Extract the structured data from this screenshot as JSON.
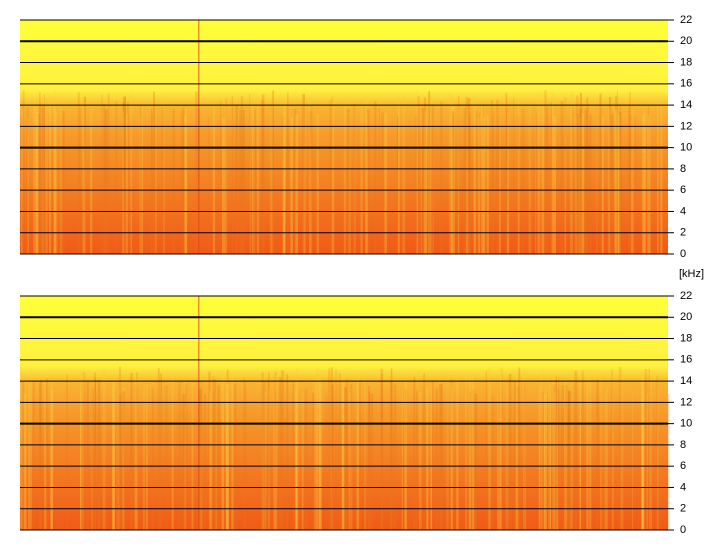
{
  "chart_data": [
    {
      "type": "spectrogram",
      "ylim": [
        0,
        22
      ],
      "yticks": [
        0,
        2,
        4,
        6,
        8,
        10,
        12,
        14,
        16,
        18,
        20,
        22
      ],
      "grid": true
    },
    {
      "type": "spectrogram",
      "y_label": "[kHz]",
      "ylim": [
        0,
        22
      ],
      "yticks": [
        0,
        2,
        4,
        6,
        8,
        10,
        12,
        14,
        16,
        18,
        20,
        22
      ],
      "grid": true
    }
  ]
}
